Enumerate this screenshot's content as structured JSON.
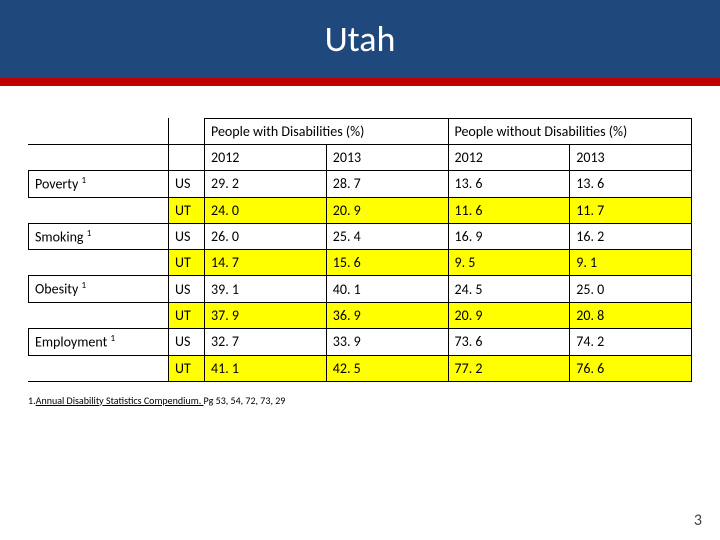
{
  "title": "Utah",
  "group_headers": [
    "People with Disabilities (%)",
    "People without Disabilities (%)"
  ],
  "year_headers": [
    "2012",
    "2013",
    "2012",
    "2013"
  ],
  "rows": [
    {
      "label": "Poverty ",
      "sup": "1",
      "geo": "US",
      "v": [
        "29. 2",
        "28. 7",
        "13. 6",
        "13. 6"
      ],
      "hl": false
    },
    {
      "label": "",
      "sup": "",
      "geo": "UT",
      "v": [
        "24. 0",
        "20. 9",
        "11. 6",
        "11. 7"
      ],
      "hl": true
    },
    {
      "label": "Smoking ",
      "sup": "1",
      "geo": "US",
      "v": [
        "26. 0",
        "25. 4",
        "16. 9",
        "16. 2"
      ],
      "hl": false
    },
    {
      "label": "",
      "sup": "",
      "geo": "UT",
      "v": [
        "14. 7",
        "15. 6",
        "9. 5",
        "9. 1"
      ],
      "hl": true
    },
    {
      "label": "Obesity ",
      "sup": "1",
      "geo": "US",
      "v": [
        "39. 1",
        "40. 1",
        "24. 5",
        "25. 0"
      ],
      "hl": false
    },
    {
      "label": "",
      "sup": "",
      "geo": "UT",
      "v": [
        "37. 9",
        "36. 9",
        "20. 9",
        "20. 8"
      ],
      "hl": true
    },
    {
      "label": "Employment ",
      "sup": "1",
      "geo": "US",
      "v": [
        "32. 7",
        "33. 9",
        "73. 6",
        "74. 2"
      ],
      "hl": false
    },
    {
      "label": "",
      "sup": "",
      "geo": "UT",
      "v": [
        "41. 1",
        "42. 5",
        "77. 2",
        "76. 6"
      ],
      "hl": true
    }
  ],
  "footnote": {
    "num": "1.",
    "linked": "Annual Disability Statistics Compendium. ",
    "rest": "Pg 53, 54, 72, 73, 29"
  },
  "page_number": "3",
  "colors": {
    "title_bg": "#1f497d",
    "stripe": "#c00000",
    "highlight": "#ffff00",
    "border": "#000000",
    "text": "#000000"
  }
}
